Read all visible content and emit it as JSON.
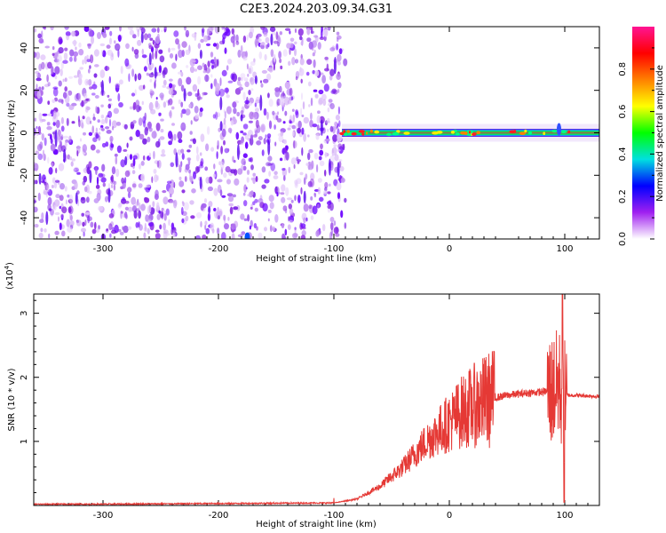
{
  "title": "C2E3.2024.203.09.34.G31",
  "chart_data": [
    {
      "type": "heatmap",
      "xlabel": "Height of straight line (km)",
      "ylabel": "Frequency (Hz)",
      "xlim": [
        -360,
        130
      ],
      "ylim": [
        -50,
        50
      ],
      "x_ticks": [
        -300,
        -200,
        -100,
        0,
        100
      ],
      "y_ticks": [
        -40,
        -20,
        0,
        20,
        40
      ],
      "colorbar": {
        "label": "Normalized spectral amplitude",
        "range": [
          0,
          1
        ],
        "ticks": [
          "0.0",
          "0.2",
          "0.4",
          "0.6",
          "0.8"
        ],
        "colors": [
          "#ffffff",
          "#a020f0",
          "#0000ff",
          "#00e0e0",
          "#00ff00",
          "#ffff00",
          "#ff8000",
          "#ff0000",
          "#ff1493"
        ]
      },
      "noise_region_x": [
        -360,
        -90
      ],
      "signal_band_x": [
        -93,
        130
      ],
      "signal_band_freq": 0
    },
    {
      "type": "line",
      "xlabel": "Height of straight line (km)",
      "ylabel": "SNR (10 * v/v)",
      "y_scale_label": "(x10",
      "y_scale_exp": "4",
      "xlim": [
        -360,
        130
      ],
      "ylim": [
        0,
        3.3
      ],
      "x_ticks": [
        -300,
        -200,
        -100,
        0,
        100
      ],
      "y_ticks": [
        1,
        2,
        3
      ],
      "line_color": "#e53935",
      "series": [
        {
          "x": [
            -360,
            -300,
            -200,
            -100,
            -80,
            -60,
            -50,
            -40,
            -30,
            -20,
            -10,
            0,
            10,
            20,
            30,
            40,
            50,
            60,
            70,
            80,
            90,
            95,
            98,
            100,
            105,
            110,
            120,
            130
          ],
          "y": [
            0.02,
            0.02,
            0.03,
            0.04,
            0.1,
            0.3,
            0.45,
            0.6,
            0.8,
            1.0,
            1.15,
            1.3,
            1.45,
            1.55,
            1.62,
            1.68,
            1.72,
            1.74,
            1.76,
            1.77,
            1.8,
            1.9,
            1.7,
            1.72,
            1.72,
            1.72,
            1.71,
            1.7
          ]
        }
      ]
    }
  ]
}
